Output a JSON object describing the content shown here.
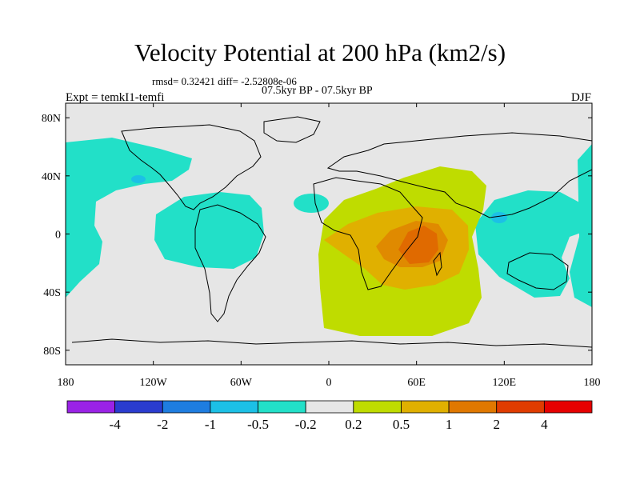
{
  "title": "Velocity Potential at 200 hPa (km2/s)",
  "stats_line": "rmsd= 0.32421  diff= -2.52808e-06",
  "subtitle": "07.5kyr BP - 07.5kyr BP",
  "experiment_label": "Expt = temkI1-temfi",
  "season_label": "DJF",
  "map": {
    "lon_ticks": [
      "180",
      "120W",
      "60W",
      "0",
      "60E",
      "120E",
      "180"
    ],
    "lat_ticks": [
      "80N",
      "40N",
      "0",
      "40S",
      "80S"
    ],
    "background_color": "#e6e6e6"
  },
  "legend": {
    "colors": [
      "#9a22e6",
      "#2a3ccf",
      "#1e7de0",
      "#1cc0e6",
      "#22e0c8",
      "#e6e6e6",
      "#bfdc00",
      "#e0b000",
      "#e07800",
      "#e03c00",
      "#e60000"
    ],
    "labels": [
      "-4",
      "-2",
      "-1",
      "-0.5",
      "-0.2",
      "0.2",
      "0.5",
      "1",
      "2",
      "4"
    ]
  }
}
